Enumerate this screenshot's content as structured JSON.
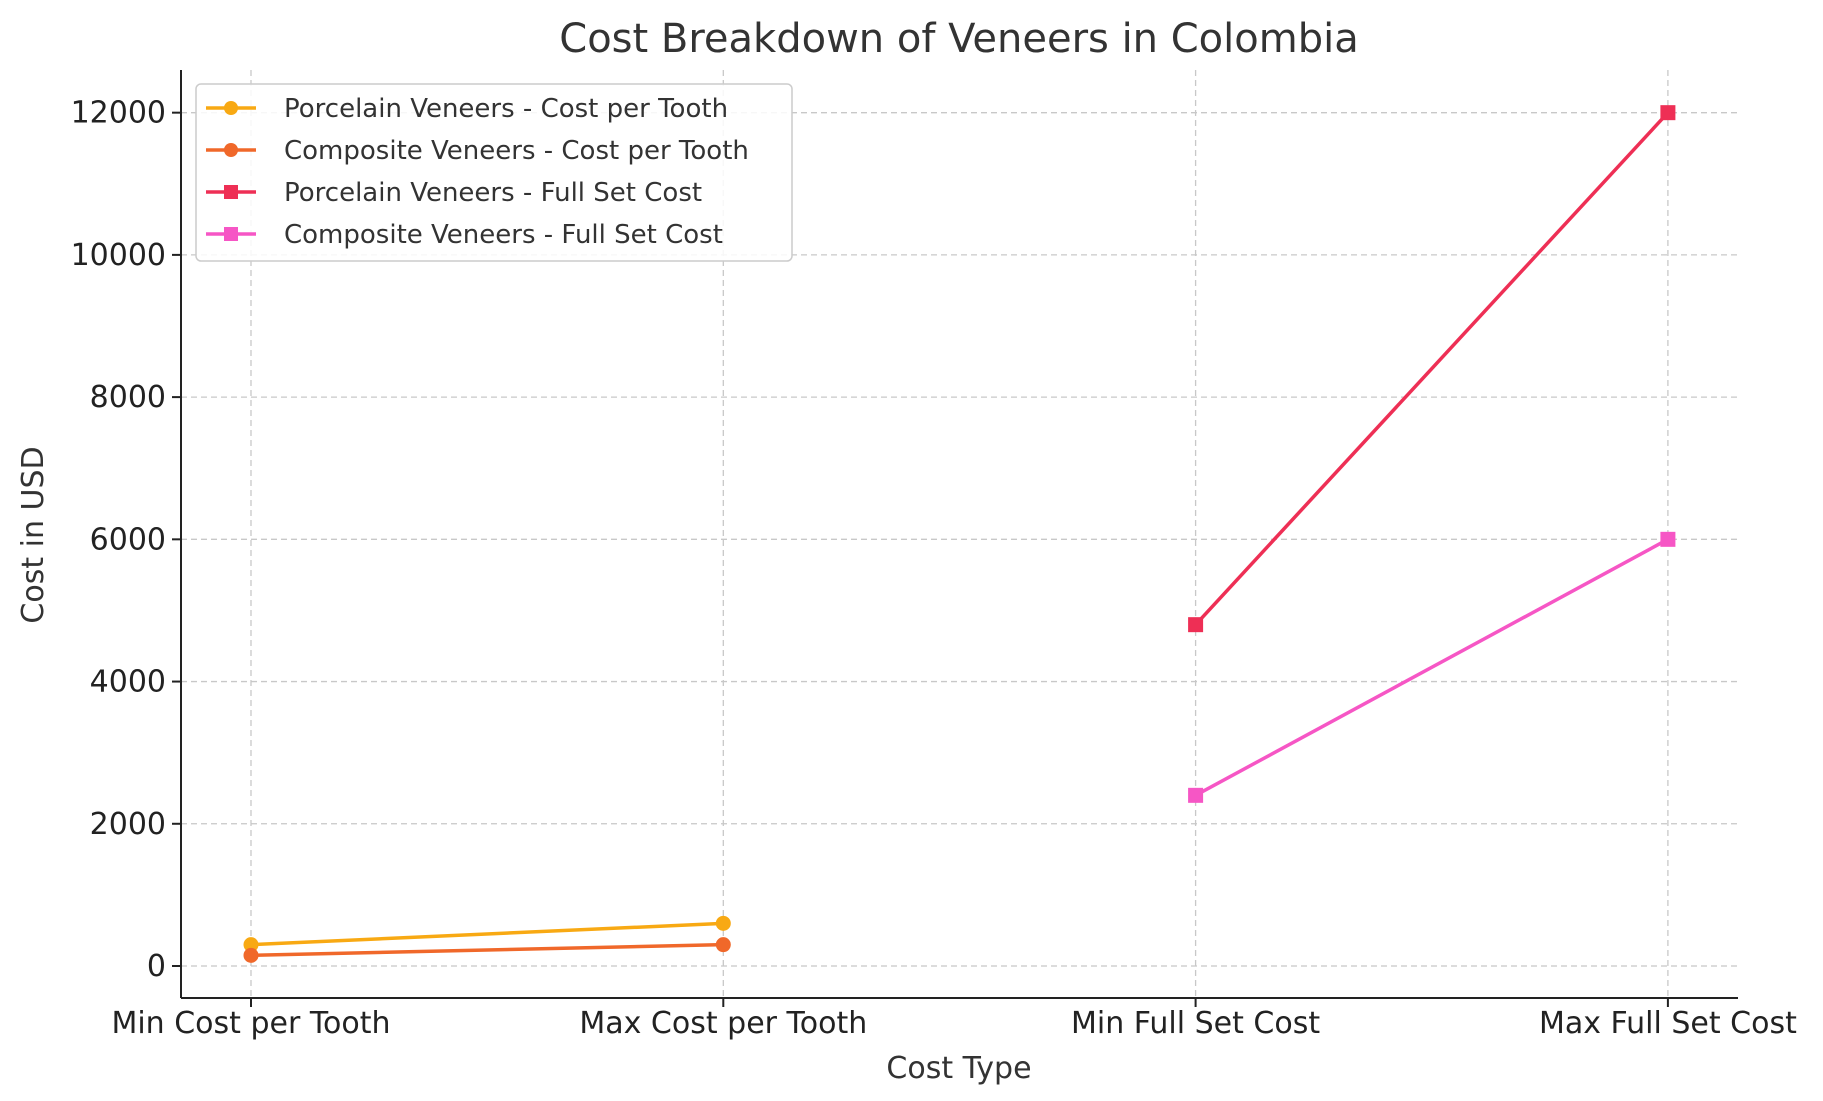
{
  "chart_data": {
    "type": "line",
    "title": "Cost Breakdown of Veneers in Colombia",
    "xlabel": "Cost Type",
    "ylabel": "Cost in USD",
    "categories": [
      "Min Cost per Tooth",
      "Max Cost per Tooth",
      "Min Full Set Cost",
      "Max Full Set Cost"
    ],
    "ylim": [
      -450,
      12600
    ],
    "yticks": [
      0,
      2000,
      4000,
      6000,
      8000,
      10000,
      12000
    ],
    "grid": true,
    "legend_position": "top-left",
    "series": [
      {
        "name": "Porcelain Veneers - Cost per Tooth",
        "color": "#f8a913",
        "marker": "circle",
        "x": [
          0,
          1
        ],
        "values": [
          300,
          600
        ]
      },
      {
        "name": "Composite Veneers - Cost per Tooth",
        "color": "#f0682a",
        "marker": "circle",
        "x": [
          0,
          1
        ],
        "values": [
          150,
          300
        ]
      },
      {
        "name": "Porcelain Veneers - Full Set Cost",
        "color": "#ee2f55",
        "marker": "square",
        "x": [
          2,
          3
        ],
        "values": [
          4800,
          12000
        ]
      },
      {
        "name": "Composite Veneers - Full Set Cost",
        "color": "#f656c5",
        "marker": "square",
        "x": [
          2,
          3
        ],
        "values": [
          2400,
          6000
        ]
      }
    ]
  }
}
